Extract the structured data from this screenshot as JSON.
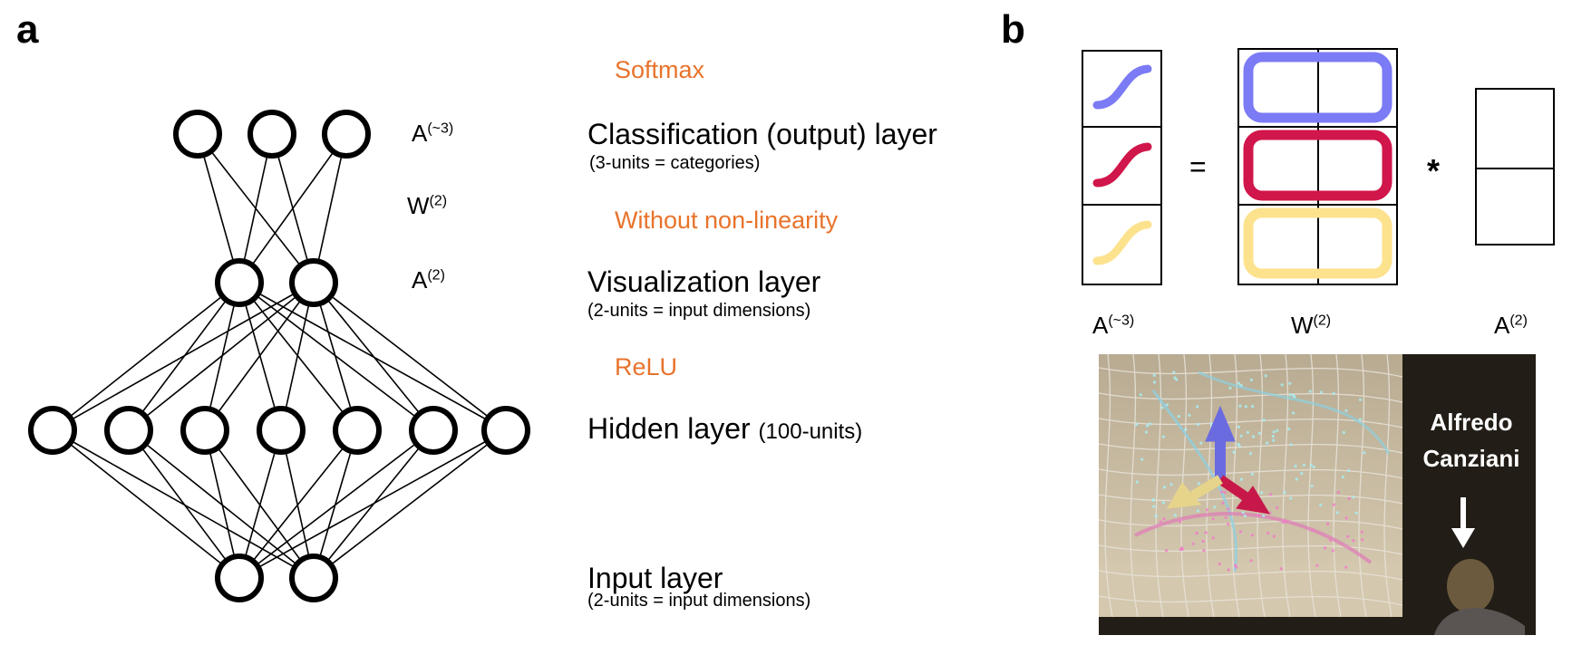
{
  "panels": {
    "a": "a",
    "b": "b"
  },
  "network": {
    "activations": {
      "output": {
        "base": "A",
        "sup": "(~3)"
      },
      "weights": {
        "base": "W",
        "sup": "(2)"
      },
      "viz": {
        "base": "A",
        "sup": "(2)"
      }
    },
    "operations": {
      "softmax": "Softmax",
      "linear": "Without non-linearity",
      "relu": "ReLU"
    },
    "layers": {
      "output": {
        "title": "Classification (output) layer",
        "sub": "(3-units = categories)"
      },
      "viz": {
        "title": "Visualization layer",
        "sub": "(2-units = input dimensions)"
      },
      "hidden": {
        "title": "Hidden layer",
        "suffix": "(100-units)"
      },
      "input": {
        "title": "Input layer",
        "sub": "(2-units = input dimensions)"
      }
    },
    "units": {
      "output": 3,
      "viz": 2,
      "hidden": 7,
      "input": 2
    }
  },
  "matrix_eq": {
    "equals": "=",
    "times": "*",
    "labels": {
      "left": {
        "base": "A",
        "sup": "(~3)"
      },
      "middle": {
        "base": "W",
        "sup": "(2)"
      },
      "right": {
        "base": "A",
        "sup": "(2)"
      }
    },
    "row_colors": [
      "#7b7bf5",
      "#d0164a",
      "#fde28e"
    ]
  },
  "photo": {
    "caption_line1": "Alfredo",
    "caption_line2": "Canziani",
    "arrow_colors": {
      "up": "#6b6be0",
      "right": "#c8184a",
      "left": "#e6d48a"
    }
  }
}
